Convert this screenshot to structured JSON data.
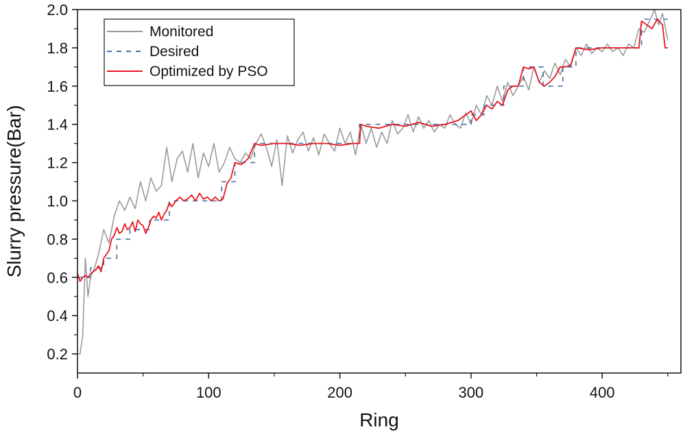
{
  "chart_data": {
    "type": "line",
    "title": "",
    "xlabel": "Ring",
    "ylabel": "Slurry pressure(Bar)",
    "xlim": [
      0,
      460
    ],
    "ylim": [
      0.1,
      2.0
    ],
    "x_ticks": [
      0,
      100,
      200,
      300,
      400
    ],
    "x_tick_labels": [
      "0",
      "100",
      "200",
      "300",
      "400"
    ],
    "y_ticks": [
      0.2,
      0.4,
      0.6,
      0.8,
      1.0,
      1.2,
      1.4,
      1.6,
      1.8,
      2.0
    ],
    "y_tick_labels": [
      "0.2",
      "0.4",
      "0.6",
      "0.8",
      "1.0",
      "1.2",
      "1.4",
      "1.6",
      "1.8",
      "2.0"
    ],
    "legend_position": "top-left",
    "series": [
      {
        "name": "Monitored",
        "color": "#999999",
        "style": "solid",
        "x": [
          0,
          2,
          4,
          6,
          8,
          10,
          13,
          16,
          20,
          24,
          28,
          32,
          36,
          40,
          44,
          48,
          52,
          56,
          60,
          64,
          68,
          72,
          76,
          80,
          84,
          88,
          92,
          96,
          100,
          104,
          108,
          112,
          116,
          120,
          124,
          128,
          132,
          136,
          140,
          144,
          148,
          152,
          156,
          160,
          164,
          168,
          172,
          176,
          180,
          184,
          188,
          192,
          196,
          200,
          204,
          208,
          212,
          216,
          220,
          224,
          228,
          232,
          236,
          240,
          244,
          248,
          252,
          256,
          260,
          264,
          268,
          272,
          276,
          280,
          284,
          288,
          292,
          296,
          300,
          304,
          308,
          312,
          316,
          320,
          324,
          328,
          332,
          336,
          340,
          344,
          348,
          352,
          356,
          360,
          364,
          368,
          372,
          376,
          380,
          384,
          388,
          392,
          396,
          400,
          404,
          408,
          412,
          416,
          420,
          424,
          428,
          432,
          436,
          440,
          443,
          446,
          450
        ],
        "y": [
          0.2,
          0.2,
          0.3,
          0.7,
          0.5,
          0.6,
          0.65,
          0.72,
          0.85,
          0.78,
          0.92,
          1.0,
          0.95,
          1.02,
          0.96,
          1.1,
          1.0,
          1.12,
          1.05,
          1.08,
          1.28,
          1.1,
          1.22,
          1.26,
          1.15,
          1.3,
          1.12,
          1.25,
          1.18,
          1.3,
          1.15,
          1.2,
          1.28,
          1.22,
          1.2,
          1.25,
          1.22,
          1.3,
          1.35,
          1.28,
          1.18,
          1.32,
          1.08,
          1.34,
          1.25,
          1.32,
          1.36,
          1.26,
          1.33,
          1.24,
          1.35,
          1.3,
          1.26,
          1.38,
          1.3,
          1.36,
          1.24,
          1.4,
          1.3,
          1.38,
          1.28,
          1.36,
          1.3,
          1.42,
          1.35,
          1.38,
          1.45,
          1.36,
          1.44,
          1.38,
          1.42,
          1.36,
          1.4,
          1.38,
          1.45,
          1.4,
          1.38,
          1.46,
          1.4,
          1.5,
          1.45,
          1.55,
          1.5,
          1.6,
          1.52,
          1.62,
          1.55,
          1.6,
          1.65,
          1.58,
          1.7,
          1.62,
          1.68,
          1.64,
          1.72,
          1.66,
          1.74,
          1.7,
          1.8,
          1.76,
          1.82,
          1.77,
          1.8,
          1.78,
          1.82,
          1.78,
          1.8,
          1.76,
          1.82,
          1.8,
          1.9,
          1.88,
          1.94,
          2.0,
          1.92,
          1.98,
          1.84
        ]
      },
      {
        "name": "Desired",
        "color": "#3f6ea6",
        "style": "dashed",
        "x": [
          0,
          10,
          10,
          20,
          20,
          30,
          30,
          40,
          40,
          55,
          55,
          70,
          70,
          110,
          110,
          120,
          120,
          135,
          135,
          215,
          215,
          300,
          300,
          310,
          310,
          325,
          325,
          340,
          340,
          355,
          355,
          370,
          370,
          380,
          380,
          430,
          430,
          450
        ],
        "y": [
          0.6,
          0.6,
          0.65,
          0.65,
          0.7,
          0.7,
          0.8,
          0.8,
          0.85,
          0.85,
          0.9,
          0.9,
          1.0,
          1.0,
          1.1,
          1.1,
          1.2,
          1.2,
          1.3,
          1.3,
          1.4,
          1.4,
          1.45,
          1.45,
          1.5,
          1.5,
          1.6,
          1.6,
          1.7,
          1.7,
          1.6,
          1.6,
          1.7,
          1.7,
          1.8,
          1.8,
          1.95,
          1.95
        ]
      },
      {
        "name": "Optimized by PSO",
        "color": "#e8141e",
        "style": "solid",
        "x": [
          0,
          2,
          4,
          6,
          8,
          10,
          12,
          14,
          16,
          18,
          20,
          22,
          24,
          26,
          28,
          30,
          32,
          34,
          36,
          38,
          40,
          42,
          44,
          46,
          48,
          50,
          52,
          54,
          56,
          58,
          60,
          62,
          64,
          66,
          68,
          70,
          72,
          75,
          78,
          81,
          84,
          87,
          90,
          93,
          96,
          99,
          102,
          105,
          108,
          111,
          114,
          117,
          120,
          125,
          130,
          135,
          140,
          150,
          160,
          170,
          180,
          190,
          200,
          210,
          215,
          216,
          220,
          230,
          240,
          250,
          260,
          270,
          280,
          290,
          300,
          304,
          308,
          312,
          316,
          320,
          324,
          328,
          332,
          336,
          340,
          344,
          348,
          352,
          356,
          360,
          364,
          368,
          372,
          376,
          380,
          390,
          400,
          410,
          420,
          428,
          430,
          434,
          438,
          442,
          446,
          448,
          450
        ],
        "y": [
          0.62,
          0.58,
          0.6,
          0.61,
          0.6,
          0.62,
          0.63,
          0.64,
          0.66,
          0.63,
          0.7,
          0.72,
          0.74,
          0.8,
          0.82,
          0.86,
          0.83,
          0.84,
          0.88,
          0.85,
          0.86,
          0.89,
          0.84,
          0.9,
          0.88,
          0.87,
          0.83,
          0.86,
          0.9,
          0.92,
          0.91,
          0.94,
          0.9,
          0.93,
          0.95,
          0.99,
          0.97,
          1.0,
          1.02,
          1.0,
          1.01,
          1.03,
          1.0,
          1.04,
          1.01,
          1.02,
          1.0,
          1.02,
          1.0,
          1.01,
          1.09,
          1.12,
          1.2,
          1.19,
          1.22,
          1.3,
          1.29,
          1.3,
          1.3,
          1.29,
          1.3,
          1.3,
          1.29,
          1.3,
          1.3,
          1.4,
          1.39,
          1.38,
          1.4,
          1.39,
          1.41,
          1.39,
          1.4,
          1.42,
          1.47,
          1.42,
          1.45,
          1.5,
          1.48,
          1.52,
          1.5,
          1.58,
          1.6,
          1.6,
          1.7,
          1.69,
          1.7,
          1.62,
          1.6,
          1.62,
          1.65,
          1.7,
          1.7,
          1.71,
          1.8,
          1.79,
          1.8,
          1.8,
          1.8,
          1.8,
          1.94,
          1.92,
          1.9,
          1.95,
          1.92,
          1.8,
          1.8
        ]
      }
    ]
  }
}
